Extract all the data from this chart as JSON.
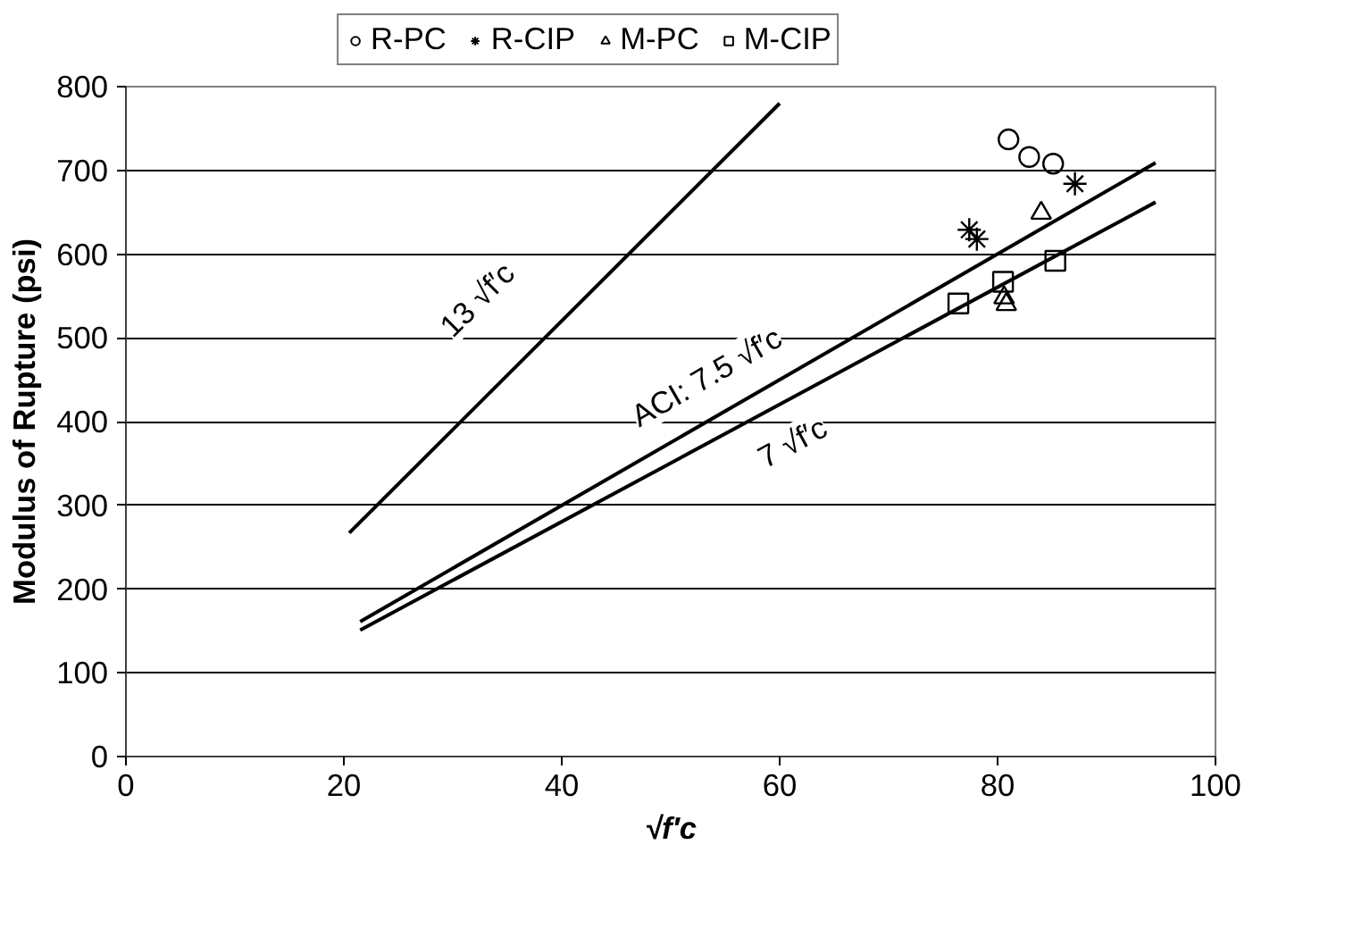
{
  "chart_data": {
    "type": "scatter",
    "xlabel": "√f′c",
    "ylabel": "Modulus of Rupture (psi)",
    "xlim": [
      0,
      100
    ],
    "xticks": [
      0,
      20,
      40,
      60,
      80,
      100
    ],
    "ylim": [
      0,
      800
    ],
    "yticks": [
      0,
      100,
      200,
      300,
      400,
      500,
      600,
      700,
      800
    ],
    "grid": "y",
    "legend": "top",
    "series": [
      {
        "name": "R-PC",
        "color": "#000000",
        "marker": "circle",
        "x": [
          81.0,
          82.9,
          85.1
        ],
        "values": [
          737,
          716,
          708
        ]
      },
      {
        "name": "R-CIP",
        "color": "#000000",
        "marker": "cross",
        "x": [
          77.4,
          78.1,
          87.1
        ],
        "values": [
          629,
          618,
          684
        ]
      },
      {
        "name": "M-PC",
        "color": "#000000",
        "marker": "triangle",
        "x": [
          84.0,
          80.6,
          80.8
        ],
        "values": [
          649,
          548,
          540
        ]
      },
      {
        "name": "M-CIP",
        "color": "#000000",
        "marker": "square",
        "x": [
          76.4,
          80.5,
          85.3
        ],
        "values": [
          541,
          567,
          592
        ]
      },
      {
        "type": "line",
        "color": "#000000",
        "line_style": "solid",
        "x": [
          20.5,
          60
        ],
        "values": [
          267,
          780
        ]
      },
      {
        "type": "line",
        "color": "#000000",
        "line_style": "solid",
        "x": [
          21.5,
          94.5
        ],
        "values": [
          161,
          709
        ]
      },
      {
        "type": "line",
        "color": "#000000",
        "line_style": "solid",
        "x": [
          21.5,
          94.5
        ],
        "values": [
          151,
          662
        ]
      }
    ],
    "annotations": [
      "13 √f′c",
      "ACI: 7.5 √f′c",
      "7 √f′c"
    ]
  }
}
